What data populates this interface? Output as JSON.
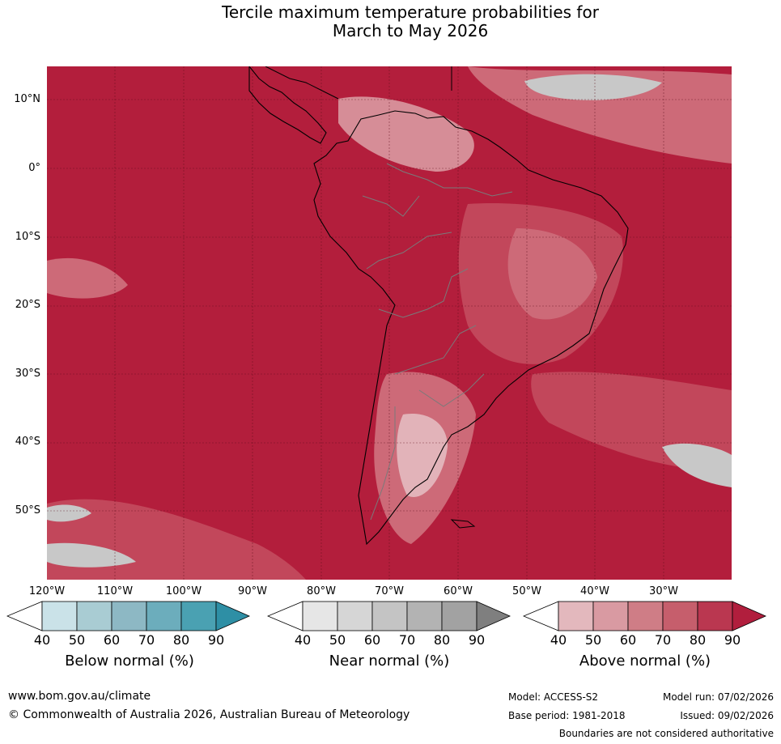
{
  "header": {
    "title_line1": "Tercile maximum temperature probabilities for",
    "title_line2": "March to May 2026"
  },
  "map": {
    "lat_labels": [
      "10°N",
      "0°",
      "10°S",
      "20°S",
      "30°S",
      "40°S",
      "50°S"
    ],
    "lon_labels": [
      "120°W",
      "110°W",
      "100°W",
      "90°W",
      "80°W",
      "70°W",
      "60°W",
      "50°W",
      "40°W",
      "30°W"
    ]
  },
  "legends": [
    {
      "label": "Below normal (%)",
      "ticks": [
        "40",
        "50",
        "60",
        "70",
        "80",
        "90"
      ],
      "colors": [
        "#ffffff",
        "#cae2e8",
        "#a9ccd3",
        "#8db8c4",
        "#6cadbc",
        "#4aa1b2",
        "#2e8fa5"
      ]
    },
    {
      "label": "Near normal (%)",
      "ticks": [
        "40",
        "50",
        "60",
        "70",
        "80",
        "90"
      ],
      "colors": [
        "#ffffff",
        "#e6e6e6",
        "#d6d6d6",
        "#c4c4c4",
        "#b3b3b3",
        "#a2a2a2",
        "#7f7f7f"
      ]
    },
    {
      "label": "Above normal (%)",
      "ticks": [
        "40",
        "50",
        "60",
        "70",
        "80",
        "90"
      ],
      "colors": [
        "#ffffff",
        "#e3b8bd",
        "#d99aa2",
        "#cf7d86",
        "#c65e6c",
        "#ba3750",
        "#b11e3d"
      ]
    }
  ],
  "footer": {
    "website": "www.bom.gov.au/climate",
    "copyright": "© Commonwealth of Australia 2026, Australian Bureau of Meteorology",
    "model": "Model: ACCESS-S2",
    "model_run": "Model run: 07/02/2026",
    "base_period": "Base period: 1981-2018",
    "issued": "Issued: 09/02/2026",
    "disclaimer": "Boundaries are not considered authoritative"
  },
  "colors": {
    "above_90": "#b31e3c",
    "above_80": "#c2475b",
    "above_70": "#cd6a78",
    "above_60": "#d68d97",
    "above_50": "#e2b3b9",
    "near": "#c8c8c8"
  }
}
